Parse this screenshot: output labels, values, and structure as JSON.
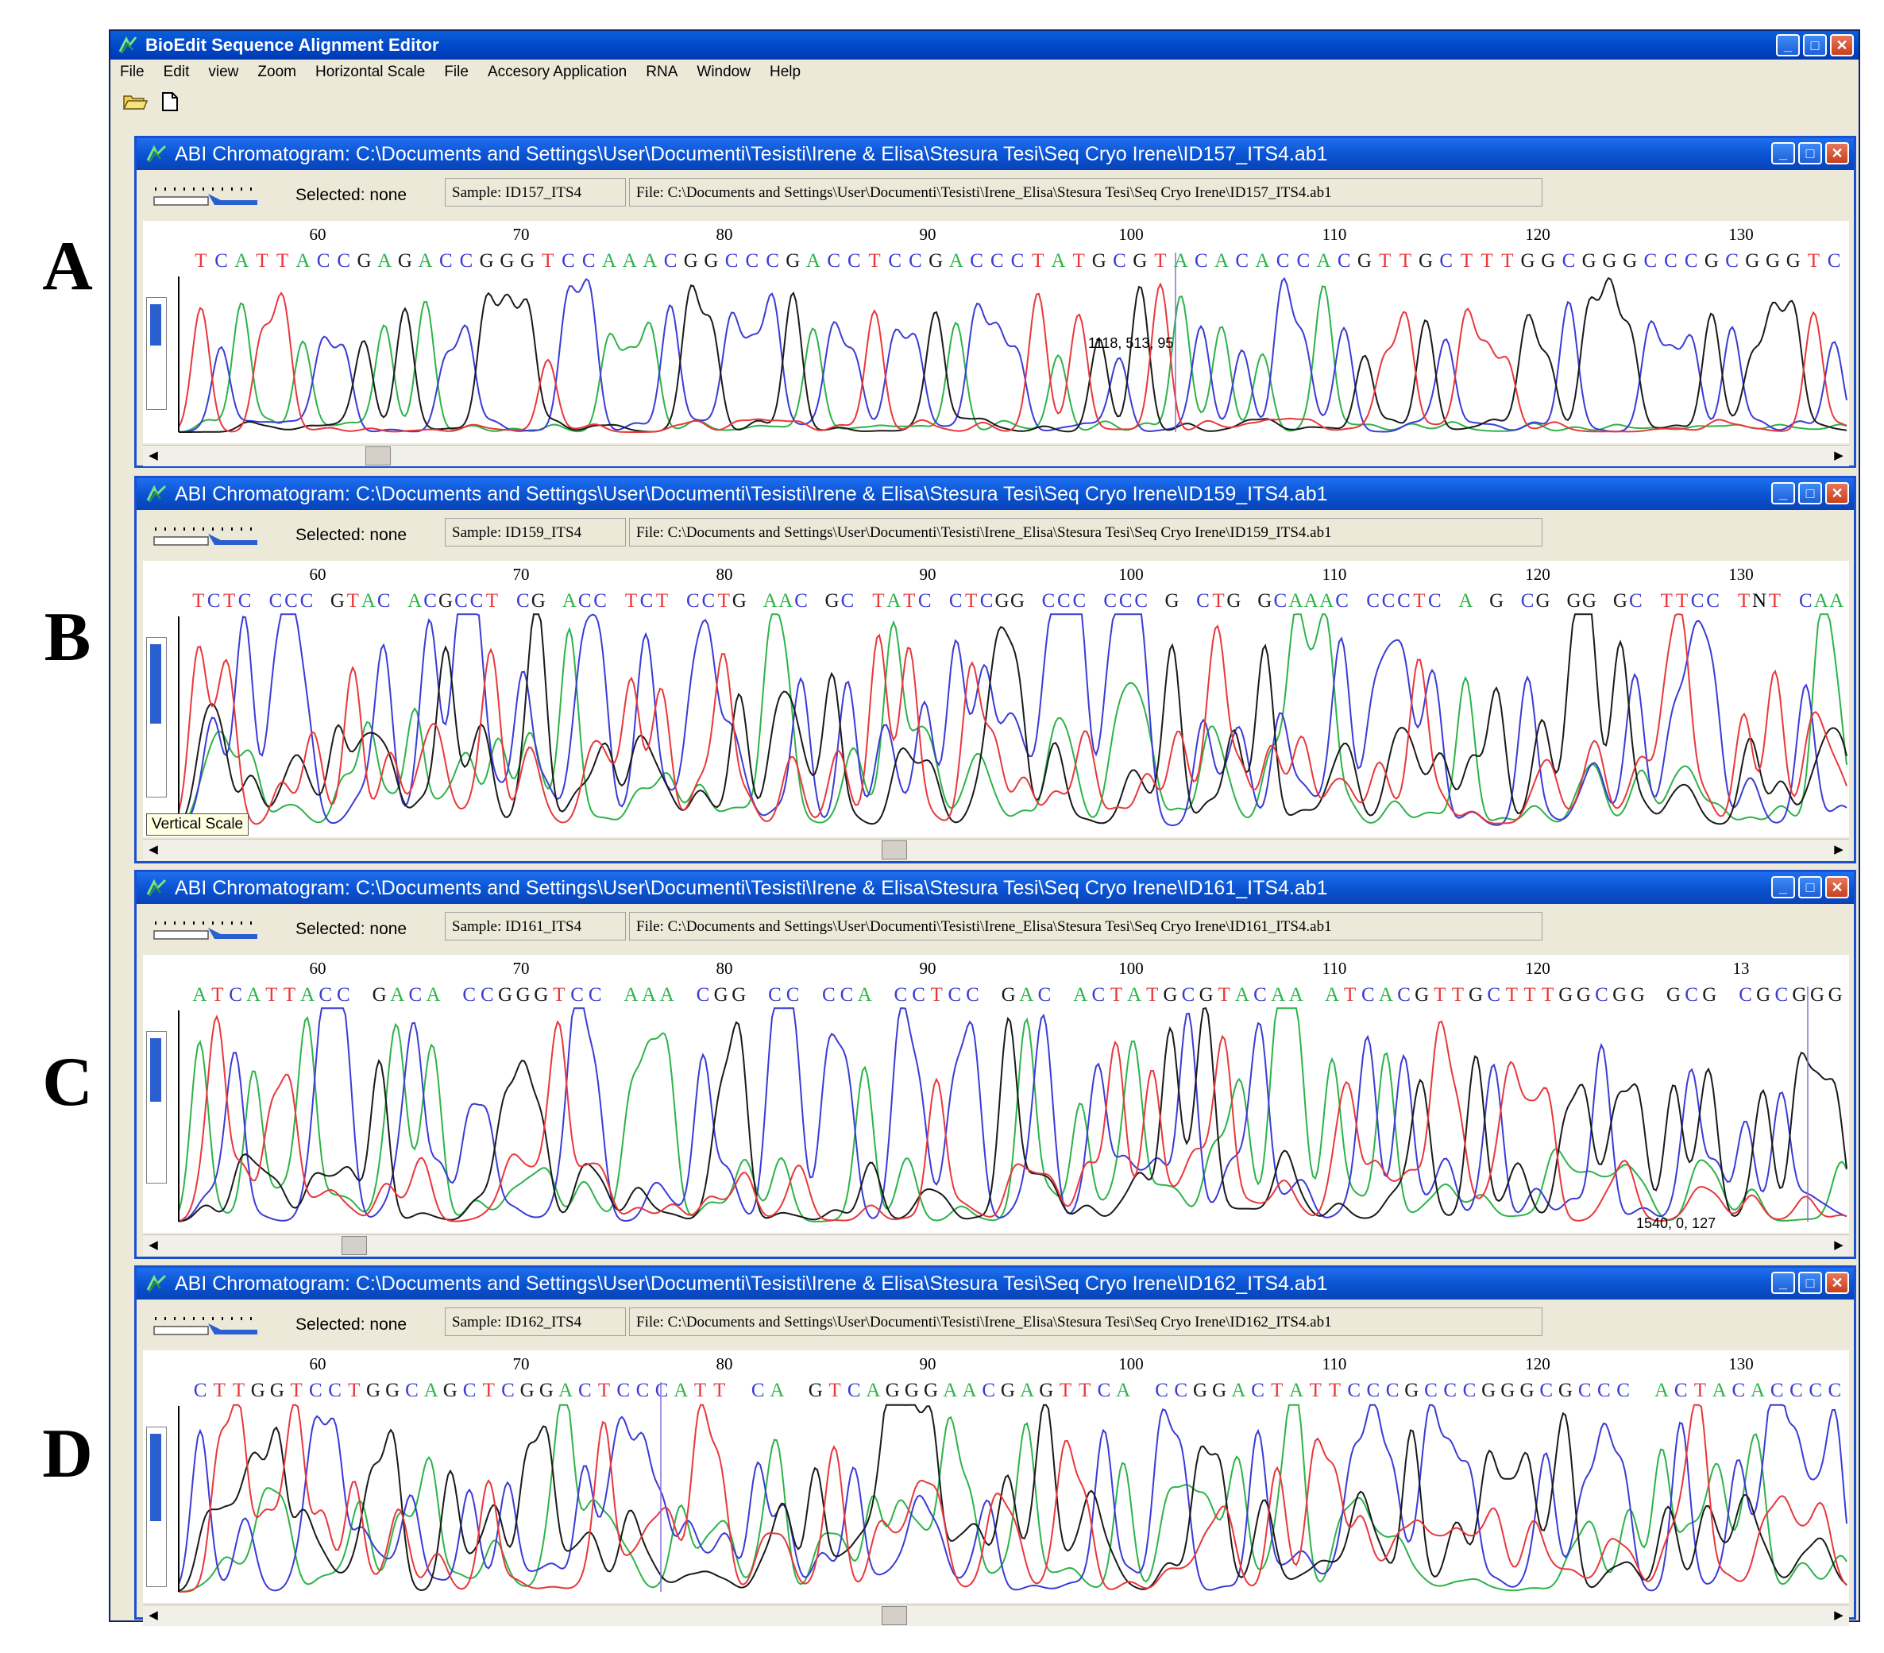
{
  "panel_labels": [
    "A",
    "B",
    "C",
    "D"
  ],
  "app": {
    "title": "BioEdit Sequence Alignment Editor",
    "menu": [
      "File",
      "Edit",
      "view",
      "Zoom",
      "Horizontal Scale",
      "File",
      "Accesory Application",
      "RNA",
      "Window",
      "Help"
    ],
    "toolbar": [
      "open-folder-icon",
      "new-document-icon"
    ]
  },
  "colors": {
    "A": "#2db34a",
    "C": "#3b3bd6",
    "G": "#1a1a1a",
    "T": "#e8383c",
    "titlebar": "#0a52d0",
    "chrome": "#ece9d8"
  },
  "windows": [
    {
      "title": "ABI Chromatogram: C:\\Documents and Settings\\User\\Documenti\\Tesisti\\Irene & Elisa\\Stesura Tesi\\Seq Cryo Irene\\ID157_ITS4.ab1",
      "selected": "Selected: none",
      "sample": "Sample: ID157_ITS4",
      "file": "File: C:\\Documents and Settings\\User\\Documenti\\Tesisti\\Irene_Elisa\\Stesura Tesi\\Seq Cryo Irene\\ID157_ITS4.ab1",
      "ruler": [
        "60",
        "70",
        "80",
        "90",
        "100",
        "110",
        "120",
        "130"
      ],
      "sequence": "TCATTACCGAGACCGGGTCCAAACGGCCCGACCTCCGACCCTATGCGTACACACCACGTTGCTTTGGCGGGCCCGCGGGTC",
      "readout": "1118, 513, 95",
      "tooltip": ""
    },
    {
      "title": "ABI Chromatogram: C:\\Documents and Settings\\User\\Documenti\\Tesisti\\Irene & Elisa\\Stesura Tesi\\Seq Cryo Irene\\ID159_ITS4.ab1",
      "selected": "Selected: none",
      "sample": "Sample: ID159_ITS4",
      "file": "File: C:\\Documents and Settings\\User\\Documenti\\Tesisti\\Irene_Elisa\\Stesura Tesi\\Seq Cryo Irene\\ID159_ITS4.ab1",
      "ruler": [
        "60",
        "70",
        "80",
        "90",
        "100",
        "110",
        "120",
        "130"
      ],
      "sequence": "TCTC CCC GTAC ACGCCT CG ACC TCT CCTG AAC GC TATC CTCGG CCC CCC G CTG GCAAAC CCCTC A G CG GG GC TTCC TNT CAA",
      "readout": "",
      "tooltip": "Vertical Scale"
    },
    {
      "title": "ABI Chromatogram: C:\\Documents and Settings\\User\\Documenti\\Tesisti\\Irene & Elisa\\Stesura Tesi\\Seq Cryo Irene\\ID161_ITS4.ab1",
      "selected": "Selected: none",
      "sample": "Sample: ID161_ITS4",
      "file": "File: C:\\Documents and Settings\\User\\Documenti\\Tesisti\\Irene_Elisa\\Stesura Tesi\\Seq Cryo Irene\\ID161_ITS4.ab1",
      "ruler": [
        "60",
        "70",
        "80",
        "90",
        "100",
        "110",
        "120",
        "13"
      ],
      "sequence": "ATCATTACC GACA CCGGGTCC AAA CGG CC CCA CCTCC GAC ACTATGCGTACAA ATCACGTTGCTTTGGCGG GCG CGCGGG",
      "readout": "1540, 0, 127",
      "tooltip": ""
    },
    {
      "title": "ABI Chromatogram: C:\\Documents and Settings\\User\\Documenti\\Tesisti\\Irene & Elisa\\Stesura Tesi\\Seq Cryo Irene\\ID162_ITS4.ab1",
      "selected": "Selected: none",
      "sample": "Sample: ID162_ITS4",
      "file": "File: C:\\Documents and Settings\\User\\Documenti\\Tesisti\\Irene_Elisa\\Stesura Tesi\\Seq Cryo Irene\\ID162_ITS4.ab1",
      "ruler": [
        "60",
        "70",
        "80",
        "90",
        "100",
        "110",
        "120",
        "130"
      ],
      "sequence": "CTTGGTCCTGGCAGCTCGGACTCCCATT CA GTCAGGGAACGAGTTCA CCGGACTATTCCCGCCCGGGCGCCC ACTACACCCC",
      "readout": "",
      "tooltip": ""
    }
  ]
}
